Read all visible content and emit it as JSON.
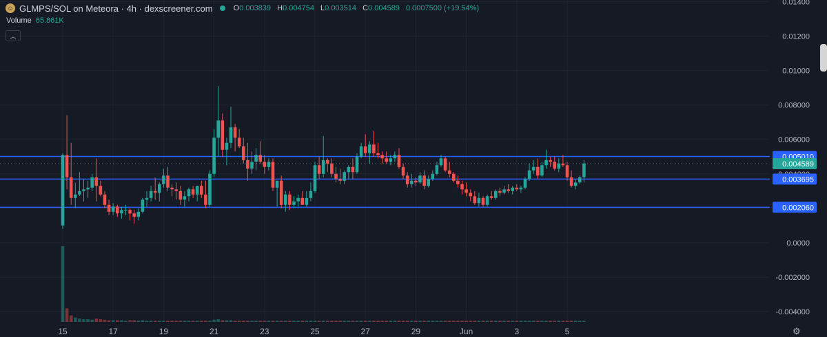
{
  "header": {
    "title": "GLMPS/SOL on Meteora · 4h · dexscreener.com",
    "ohlc": [
      {
        "k": "O",
        "v": "0.003839"
      },
      {
        "k": "H",
        "v": "0.004754"
      },
      {
        "k": "L",
        "v": "0.003514"
      },
      {
        "k": "C",
        "v": "0.004589"
      },
      {
        "k": "",
        "v": "0.0007500 (+19.54%)"
      }
    ],
    "volume_label": "Volume",
    "volume_value": "65.861K",
    "collapse_glyph": "︿"
  },
  "colors": {
    "background": "#161a25",
    "up": "#26a69a",
    "down": "#ef5350",
    "hline": "#2962ff",
    "grid": "#1f2430"
  },
  "chart_data": {
    "type": "candlestick",
    "title": "GLMPS/SOL on Meteora · 4h · dexscreener.com",
    "ylim": [
      -0.0046,
      0.0141
    ],
    "y_ticks": [
      "0.01400",
      "0.01200",
      "0.01000",
      "0.008000",
      "0.006000",
      "0.004000",
      "0.002000",
      "0.0000",
      "-0.002000",
      "-0.004000"
    ],
    "y_tick_values": [
      0.014,
      0.012,
      0.01,
      0.008,
      0.006,
      0.004,
      0.002,
      0.0,
      -0.002,
      -0.004
    ],
    "x_ticks": [
      "15",
      "17",
      "19",
      "21",
      "23",
      "25",
      "27",
      "29",
      "Jun",
      "3",
      "5"
    ],
    "x_tick_index": [
      0,
      12,
      24,
      36,
      48,
      60,
      72,
      84,
      96,
      108,
      120
    ],
    "horizontal_lines": [
      {
        "value": 0.00501,
        "label": "0.005010"
      },
      {
        "value": 0.003695,
        "label": "0.003695"
      },
      {
        "value": 0.00206,
        "label": "0.002060"
      }
    ],
    "last_price": {
      "value": 0.004589,
      "label": "0.004589"
    },
    "candles": [
      [
        0.001,
        0.0052,
        0.0008,
        0.0051
      ],
      [
        0.0051,
        0.0074,
        0.0031,
        0.0038
      ],
      [
        0.0038,
        0.0058,
        0.0022,
        0.0026
      ],
      [
        0.0026,
        0.0035,
        0.002,
        0.0028
      ],
      [
        0.0028,
        0.0041,
        0.0027,
        0.003
      ],
      [
        0.003,
        0.0037,
        0.0024,
        0.0031
      ],
      [
        0.0031,
        0.0036,
        0.0026,
        0.0032
      ],
      [
        0.0032,
        0.004,
        0.003,
        0.0038
      ],
      [
        0.0038,
        0.0049,
        0.0024,
        0.0033
      ],
      [
        0.0033,
        0.0036,
        0.0027,
        0.0028
      ],
      [
        0.0028,
        0.003,
        0.002,
        0.0022
      ],
      [
        0.0022,
        0.0025,
        0.0016,
        0.0018
      ],
      [
        0.0018,
        0.0023,
        0.0016,
        0.0021
      ],
      [
        0.0021,
        0.0022,
        0.0015,
        0.0017
      ],
      [
        0.0017,
        0.0021,
        0.0014,
        0.0019
      ],
      [
        0.0019,
        0.0022,
        0.0016,
        0.0019
      ],
      [
        0.0019,
        0.002,
        0.0013,
        0.0017
      ],
      [
        0.0017,
        0.0019,
        0.0011,
        0.0015
      ],
      [
        0.0015,
        0.002,
        0.0013,
        0.0018
      ],
      [
        0.0018,
        0.0026,
        0.0017,
        0.0025
      ],
      [
        0.0025,
        0.003,
        0.0021,
        0.0026
      ],
      [
        0.0026,
        0.0033,
        0.0024,
        0.003
      ],
      [
        0.003,
        0.0038,
        0.0025,
        0.0029
      ],
      [
        0.0029,
        0.0035,
        0.0024,
        0.0034
      ],
      [
        0.0034,
        0.0043,
        0.0032,
        0.0039
      ],
      [
        0.0039,
        0.0044,
        0.003,
        0.0032
      ],
      [
        0.0032,
        0.0034,
        0.0027,
        0.0031
      ],
      [
        0.0031,
        0.0035,
        0.0025,
        0.003
      ],
      [
        0.003,
        0.0033,
        0.0022,
        0.0025
      ],
      [
        0.0025,
        0.003,
        0.0021,
        0.0027
      ],
      [
        0.0027,
        0.0032,
        0.0024,
        0.0031
      ],
      [
        0.0031,
        0.0033,
        0.0026,
        0.0028
      ],
      [
        0.0028,
        0.0033,
        0.0024,
        0.0033
      ],
      [
        0.0033,
        0.0036,
        0.0026,
        0.0028
      ],
      [
        0.0028,
        0.0036,
        0.002,
        0.0022
      ],
      [
        0.0022,
        0.0042,
        0.0021,
        0.004
      ],
      [
        0.004,
        0.0066,
        0.0038,
        0.0061
      ],
      [
        0.0061,
        0.0091,
        0.005,
        0.0071
      ],
      [
        0.0071,
        0.0075,
        0.005,
        0.0054
      ],
      [
        0.0054,
        0.0061,
        0.0045,
        0.0058
      ],
      [
        0.0058,
        0.0079,
        0.0055,
        0.0067
      ],
      [
        0.0067,
        0.0069,
        0.0053,
        0.0061
      ],
      [
        0.0061,
        0.0066,
        0.0055,
        0.0056
      ],
      [
        0.0056,
        0.0061,
        0.0046,
        0.0048
      ],
      [
        0.0048,
        0.0058,
        0.0036,
        0.0043
      ],
      [
        0.0043,
        0.0053,
        0.004,
        0.0047
      ],
      [
        0.0047,
        0.0055,
        0.0042,
        0.0051
      ],
      [
        0.0051,
        0.0059,
        0.0046,
        0.0047
      ],
      [
        0.0047,
        0.0051,
        0.004,
        0.0044
      ],
      [
        0.0044,
        0.0049,
        0.0042,
        0.0047
      ],
      [
        0.0047,
        0.0049,
        0.003,
        0.0032
      ],
      [
        0.0032,
        0.0036,
        0.0021,
        0.0036
      ],
      [
        0.0036,
        0.0039,
        0.002,
        0.0022
      ],
      [
        0.0022,
        0.003,
        0.0018,
        0.0028
      ],
      [
        0.0028,
        0.003,
        0.0019,
        0.0022
      ],
      [
        0.0022,
        0.0027,
        0.002,
        0.0024
      ],
      [
        0.0024,
        0.0028,
        0.0021,
        0.0026
      ],
      [
        0.0026,
        0.003,
        0.0022,
        0.0022
      ],
      [
        0.0022,
        0.003,
        0.0021,
        0.0026
      ],
      [
        0.0026,
        0.0035,
        0.0024,
        0.003
      ],
      [
        0.003,
        0.0047,
        0.0029,
        0.0045
      ],
      [
        0.0045,
        0.005,
        0.0037,
        0.004
      ],
      [
        0.004,
        0.0062,
        0.0038,
        0.0048
      ],
      [
        0.0048,
        0.0049,
        0.0041,
        0.0046
      ],
      [
        0.0046,
        0.0049,
        0.0038,
        0.004
      ],
      [
        0.004,
        0.0044,
        0.0035,
        0.0037
      ],
      [
        0.0037,
        0.0043,
        0.0034,
        0.0036
      ],
      [
        0.0036,
        0.0042,
        0.0034,
        0.0041
      ],
      [
        0.0041,
        0.0045,
        0.0037,
        0.0044
      ],
      [
        0.0044,
        0.0049,
        0.0037,
        0.0041
      ],
      [
        0.0041,
        0.0052,
        0.004,
        0.005
      ],
      [
        0.005,
        0.0058,
        0.0049,
        0.0056
      ],
      [
        0.0056,
        0.0063,
        0.005,
        0.0052
      ],
      [
        0.0052,
        0.0059,
        0.0046,
        0.0057
      ],
      [
        0.0057,
        0.0065,
        0.005,
        0.0052
      ],
      [
        0.0052,
        0.0058,
        0.0049,
        0.0051
      ],
      [
        0.0051,
        0.0053,
        0.0046,
        0.0049
      ],
      [
        0.0049,
        0.0053,
        0.0046,
        0.0047
      ],
      [
        0.0047,
        0.0051,
        0.0045,
        0.0049
      ],
      [
        0.0049,
        0.0053,
        0.0047,
        0.0051
      ],
      [
        0.0051,
        0.0055,
        0.0043,
        0.0044
      ],
      [
        0.0044,
        0.0046,
        0.0037,
        0.0039
      ],
      [
        0.0039,
        0.0041,
        0.0032,
        0.0034
      ],
      [
        0.0034,
        0.004,
        0.0032,
        0.0036
      ],
      [
        0.0036,
        0.0038,
        0.0033,
        0.0035
      ],
      [
        0.0035,
        0.0041,
        0.0034,
        0.0039
      ],
      [
        0.0039,
        0.0042,
        0.0031,
        0.0033
      ],
      [
        0.0033,
        0.0039,
        0.0032,
        0.0037
      ],
      [
        0.0037,
        0.0042,
        0.0036,
        0.004
      ],
      [
        0.004,
        0.0047,
        0.0039,
        0.0045
      ],
      [
        0.0045,
        0.0051,
        0.0044,
        0.0049
      ],
      [
        0.0049,
        0.005,
        0.0041,
        0.0042
      ],
      [
        0.0042,
        0.0047,
        0.0038,
        0.004
      ],
      [
        0.004,
        0.0041,
        0.0035,
        0.0036
      ],
      [
        0.0036,
        0.0039,
        0.0032,
        0.0034
      ],
      [
        0.0034,
        0.0036,
        0.0028,
        0.0031
      ],
      [
        0.0031,
        0.0035,
        0.0027,
        0.0029
      ],
      [
        0.0029,
        0.0031,
        0.0024,
        0.0027
      ],
      [
        0.0027,
        0.003,
        0.0022,
        0.0023
      ],
      [
        0.0023,
        0.0029,
        0.0021,
        0.0026
      ],
      [
        0.0026,
        0.0027,
        0.0021,
        0.0022
      ],
      [
        0.0022,
        0.0028,
        0.0021,
        0.0027
      ],
      [
        0.0027,
        0.003,
        0.0025,
        0.0026
      ],
      [
        0.0026,
        0.0031,
        0.0025,
        0.003
      ],
      [
        0.003,
        0.0032,
        0.0027,
        0.0029
      ],
      [
        0.0029,
        0.0033,
        0.0028,
        0.0031
      ],
      [
        0.0031,
        0.0034,
        0.0029,
        0.003
      ],
      [
        0.003,
        0.0033,
        0.0028,
        0.0032
      ],
      [
        0.0032,
        0.0034,
        0.003,
        0.0031
      ],
      [
        0.0031,
        0.0033,
        0.0029,
        0.0032
      ],
      [
        0.0032,
        0.0038,
        0.0031,
        0.0037
      ],
      [
        0.0037,
        0.0046,
        0.0036,
        0.0042
      ],
      [
        0.0042,
        0.0048,
        0.004,
        0.0044
      ],
      [
        0.0044,
        0.0049,
        0.0037,
        0.0039
      ],
      [
        0.0039,
        0.0047,
        0.0038,
        0.0045
      ],
      [
        0.0045,
        0.0054,
        0.0043,
        0.0048
      ],
      [
        0.0048,
        0.005,
        0.0044,
        0.0047
      ],
      [
        0.0047,
        0.005,
        0.0042,
        0.0043
      ],
      [
        0.0043,
        0.0049,
        0.0041,
        0.0046
      ],
      [
        0.0046,
        0.0051,
        0.0044,
        0.0045
      ],
      [
        0.0045,
        0.0047,
        0.0036,
        0.0038
      ],
      [
        0.0038,
        0.0042,
        0.0032,
        0.0033
      ],
      [
        0.0033,
        0.0037,
        0.0031,
        0.0035
      ],
      [
        0.0035,
        0.0039,
        0.0034,
        0.0038
      ],
      [
        0.0038,
        0.0048,
        0.0035,
        0.0046
      ]
    ],
    "volume_ylim": [
      0,
      14
    ],
    "volumes": [
      14,
      2.5,
      1.2,
      0.8,
      0.6,
      0.5,
      0.5,
      0.4,
      0.6,
      0.5,
      0.4,
      0.3,
      0.3,
      0.3,
      0.3,
      0.2,
      0.3,
      0.3,
      0.2,
      0.3,
      0.2,
      0.2,
      0.2,
      0.2,
      0.2,
      0.2,
      0.2,
      0.2,
      0.2,
      0.2,
      0.2,
      0.2,
      0.2,
      0.2,
      0.2,
      0.2,
      0.4,
      0.5,
      0.3,
      0.3,
      0.3,
      0.2,
      0.2,
      0.2,
      0.2,
      0.2,
      0.2,
      0.2,
      0.2,
      0.2,
      0.2,
      0.2,
      0.2,
      0.2,
      0.2,
      0.2,
      0.2,
      0.2,
      0.2,
      0.2,
      0.2,
      0.2,
      0.2,
      0.2,
      0.2,
      0.2,
      0.2,
      0.2,
      0.2,
      0.2,
      0.2,
      0.2,
      0.2,
      0.2,
      0.2,
      0.2,
      0.2,
      0.2,
      0.2,
      0.2,
      0.2,
      0.2,
      0.2,
      0.2,
      0.2,
      0.2,
      0.2,
      0.2,
      0.2,
      0.2,
      0.2,
      0.2,
      0.2,
      0.2,
      0.2,
      0.2,
      0.2,
      0.2,
      0.2,
      0.2,
      0.2,
      0.2,
      0.2,
      0.2,
      0.2,
      0.2,
      0.2,
      0.2,
      0.2,
      0.2,
      0.2,
      0.2,
      0.2,
      0.2,
      0.2,
      0.2,
      0.2,
      0.2,
      0.2,
      0.2,
      0.2,
      0.2,
      0.2,
      0.2,
      0.2
    ]
  }
}
